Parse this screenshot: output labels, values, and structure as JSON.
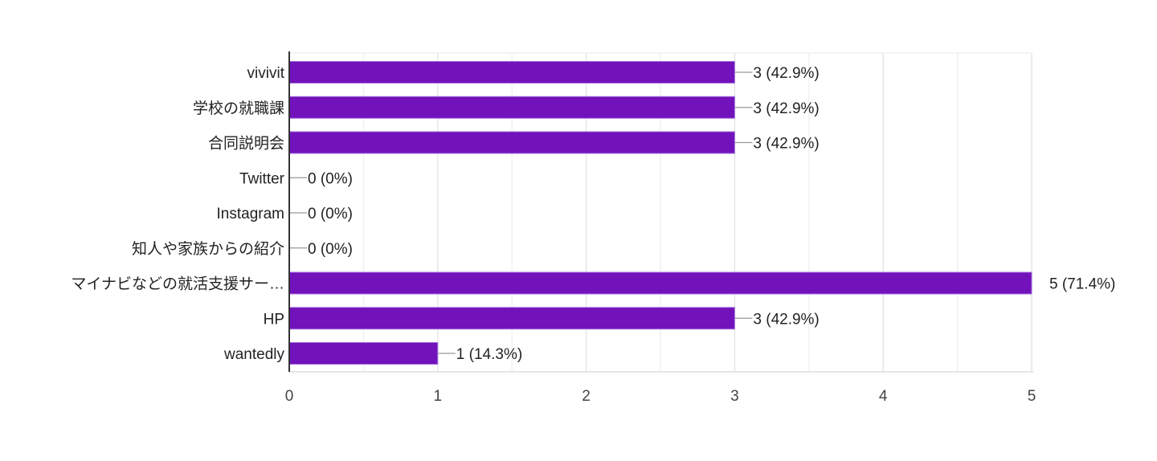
{
  "chart_data": {
    "type": "bar",
    "orientation": "horizontal",
    "title": "",
    "xlabel": "",
    "ylabel": "",
    "categories": [
      "vivivit",
      "学校の就職課",
      "合同説明会",
      "Twitter",
      "Instagram",
      "知人や家族からの紹介",
      "マイナビなどの就活支援サー…",
      "HP",
      "wantedly"
    ],
    "values": [
      3,
      3,
      3,
      0,
      0,
      0,
      5,
      3,
      1
    ],
    "data_labels": [
      "3 (42.9%)",
      "3 (42.9%)",
      "3 (42.9%)",
      "0 (0%)",
      "0 (0%)",
      "0 (0%)",
      "5 (71.4%)",
      "3 (42.9%)",
      "1 (14.3%)"
    ],
    "xlim": [
      0,
      5
    ],
    "xticks": [
      "0",
      "1",
      "2",
      "3",
      "4",
      "5"
    ],
    "grid": true,
    "legend": "none",
    "bar_color": "#7212BA"
  }
}
